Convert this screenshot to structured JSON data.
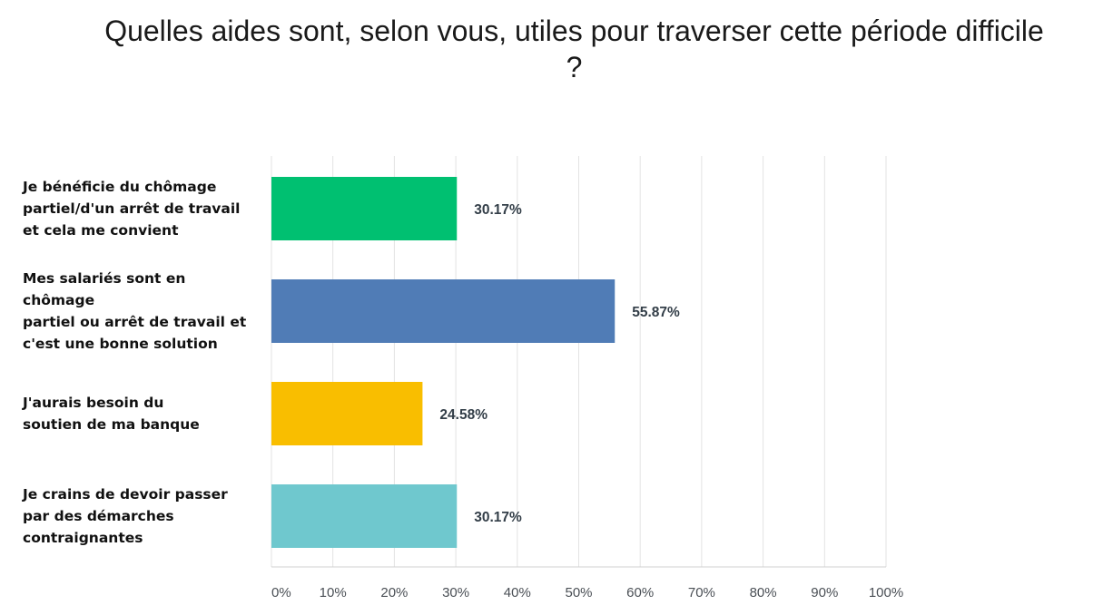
{
  "title": "Quelles aides sont, selon vous, utiles pour traverser cette période difficile ?",
  "chart_data": {
    "type": "bar",
    "orientation": "horizontal",
    "categories": [
      [
        "Je bénéficie du chômage",
        "partiel/d'un arrêt de travail",
        "et cela me convient"
      ],
      [
        "Mes salariés sont en chômage",
        "partiel ou arrêt de travail et",
        "c'est une bonne solution"
      ],
      [
        "J'aurais besoin du",
        "soutien de ma banque"
      ],
      [
        "Je crains de devoir passer",
        "par des démarches",
        "contraignantes"
      ]
    ],
    "values": [
      30.17,
      55.87,
      24.58,
      30.17
    ],
    "value_labels": [
      "30.17%",
      "55.87%",
      "24.58%",
      "30.17%"
    ],
    "colors": [
      "#00c071",
      "#507cb6",
      "#f9be00",
      "#6fc8ce"
    ],
    "xlim": [
      0,
      100
    ],
    "xticks": [
      0,
      10,
      20,
      30,
      40,
      50,
      60,
      70,
      80,
      90,
      100
    ],
    "xtick_labels": [
      "0%",
      "10%",
      "20%",
      "30%",
      "40%",
      "50%",
      "60%",
      "70%",
      "80%",
      "90%",
      "100%"
    ],
    "grid": true,
    "grid_color": "#e3e3e3",
    "value_label_color": "#333e48"
  }
}
